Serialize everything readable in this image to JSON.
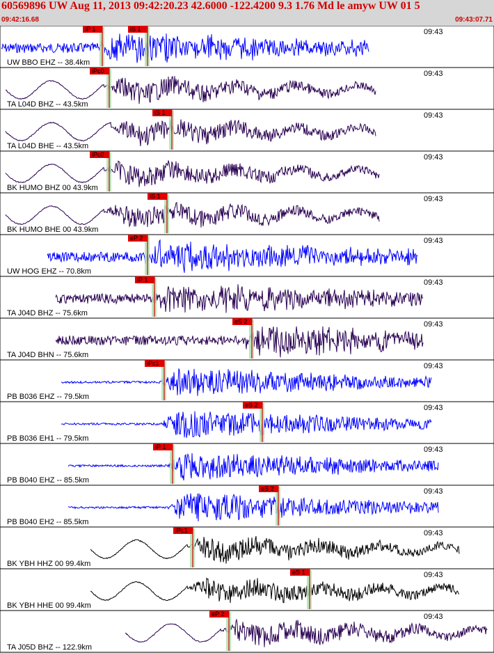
{
  "header": {
    "title": "60569896 UW Aug 11, 2013 09:42:20.23   42.6000 -122.4200  9.3 1.76 Md le amyw UW 01   5",
    "start_time": "09:42:16.68",
    "end_time": "09:43:07.71"
  },
  "colors": {
    "accent": "#d00000",
    "blue_trace": "#0000ff",
    "purple_trace": "#280050",
    "black_trace": "#000000",
    "pick_band": "#b4e0b4"
  },
  "traces": [
    {
      "label": "UW BBO EHZ -- 38.4km",
      "time": "09:43",
      "color": "blue",
      "wave": "noise",
      "start": 2,
      "end": 530,
      "onset": 140,
      "picks": [
        {
          "label": "iP 1",
          "t": 147
        },
        {
          "label": "iS 1",
          "t": 212
        }
      ]
    },
    {
      "label": "TA L04D BHZ -- 43.5km",
      "time": "09:43",
      "color": "purple",
      "wave": "longp",
      "start": 8,
      "end": 540,
      "onset": 150,
      "picks": [
        {
          "label": "iPc0",
          "t": 157
        }
      ]
    },
    {
      "label": "TA L04D BHE -- 43.5km",
      "time": "09:43",
      "color": "purple",
      "wave": "longp",
      "start": 8,
      "end": 540,
      "onset": 160,
      "picks": [
        {
          "label": "iS 1",
          "t": 247
        }
      ]
    },
    {
      "label": "BK HUMO BHZ 00 43.9km",
      "time": "09:43",
      "color": "purple",
      "wave": "longp",
      "start": 8,
      "end": 545,
      "onset": 150,
      "picks": [
        {
          "label": "iPc0",
          "t": 157
        }
      ]
    },
    {
      "label": "BK HUMO BHE 00 43.9km",
      "time": "09:43",
      "color": "purple",
      "wave": "longp",
      "start": 8,
      "end": 545,
      "onset": 150,
      "picks": [
        {
          "label": "iS 1",
          "t": 240
        }
      ]
    },
    {
      "label": "UW HOG EHZ -- 70.8km",
      "time": "09:43",
      "color": "blue",
      "wave": "noise",
      "start": 68,
      "end": 600,
      "onset": 205,
      "picks": [
        {
          "label": "eP 2",
          "t": 212
        }
      ]
    },
    {
      "label": "TA J04D BHZ -- 75.6km",
      "time": "09:43",
      "color": "purple",
      "wave": "noise",
      "start": 80,
      "end": 608,
      "onset": 215,
      "picks": [
        {
          "label": "iP 1",
          "t": 222
        }
      ]
    },
    {
      "label": "TA J04D BHN -- 75.6km",
      "time": "09:43",
      "color": "purple",
      "wave": "noise",
      "start": 80,
      "end": 608,
      "onset": 345,
      "picks": [
        {
          "label": "eS 2",
          "t": 362
        }
      ]
    },
    {
      "label": "PB B036 EHZ -- 79.5km",
      "time": "09:43",
      "color": "blue",
      "wave": "quiet",
      "start": 88,
      "end": 620,
      "onset": 228,
      "picks": [
        {
          "label": "iPc1",
          "t": 236
        }
      ]
    },
    {
      "label": "PB B036 EH1 -- 79.5km",
      "time": "09:43",
      "color": "blue",
      "wave": "quiet",
      "start": 88,
      "end": 620,
      "onset": 228,
      "picks": [
        {
          "label": "eS 2",
          "t": 377
        }
      ]
    },
    {
      "label": "PB B040 EHZ -- 85.5km",
      "time": "09:43",
      "color": "blue",
      "wave": "quiet",
      "start": 98,
      "end": 630,
      "onset": 240,
      "picks": [
        {
          "label": "iP 1",
          "t": 248
        }
      ]
    },
    {
      "label": "PB B040 EH2 -- 85.5km",
      "time": "09:43",
      "color": "blue",
      "wave": "quiet",
      "start": 98,
      "end": 630,
      "onset": 240,
      "picks": [
        {
          "label": "eS 2",
          "t": 400
        }
      ]
    },
    {
      "label": "BK YBH HHZ 00 99.4km",
      "time": "09:43",
      "color": "black",
      "wave": "longp",
      "start": 130,
      "end": 660,
      "onset": 270,
      "picks": [
        {
          "label": "iPc1",
          "t": 277
        }
      ]
    },
    {
      "label": "BK YBH HHE 00 99.4km",
      "time": "09:43",
      "color": "black",
      "wave": "longp",
      "start": 130,
      "end": 660,
      "onset": 270,
      "picks": [
        {
          "label": "eS 1",
          "t": 445
        }
      ]
    },
    {
      "label": "TA J05D BHZ -- 122.9km",
      "time": "09:43",
      "color": "purple",
      "wave": "longp",
      "start": 180,
      "end": 700,
      "onset": 318,
      "picks": [
        {
          "label": "eP 2",
          "t": 329
        }
      ]
    }
  ]
}
